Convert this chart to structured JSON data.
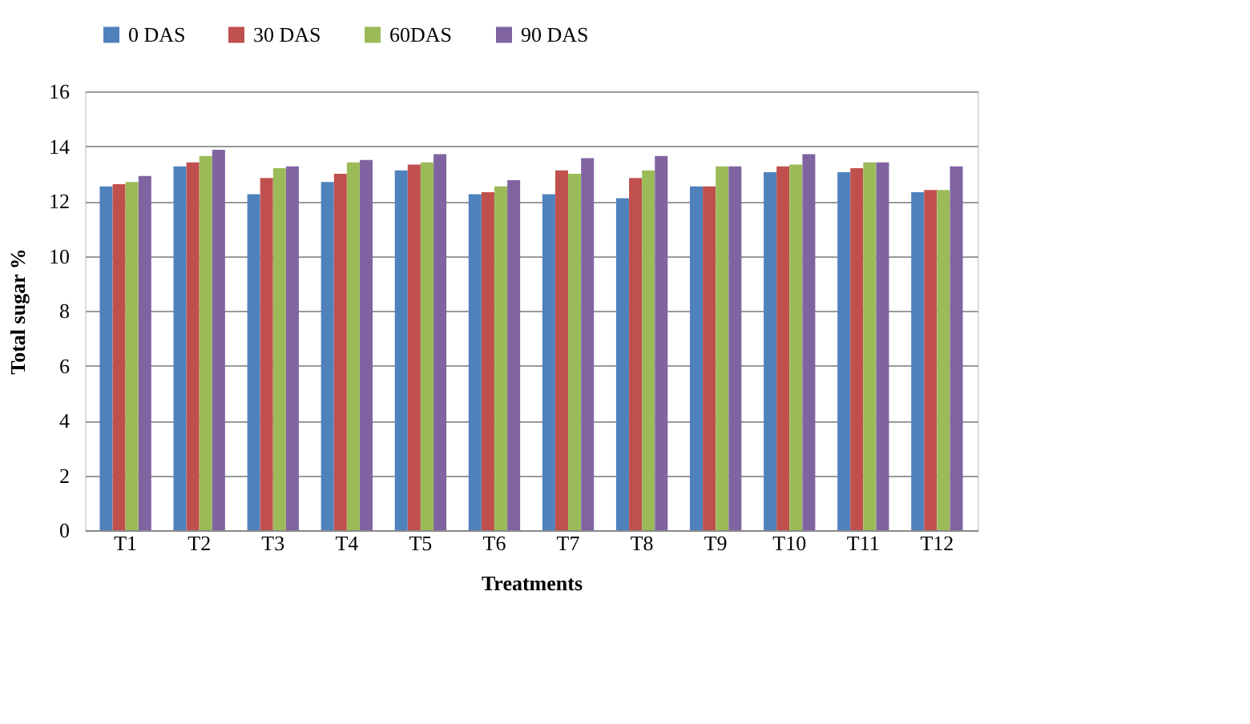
{
  "chart_data": {
    "type": "bar",
    "xlabel": "Treatments",
    "ylabel": "Total sugar %",
    "categories": [
      "T1",
      "T2",
      "T3",
      "T4",
      "T5",
      "T6",
      "T7",
      "T8",
      "T9",
      "T10",
      "T11",
      "T12"
    ],
    "series": [
      {
        "name": "0 DAS",
        "color": "#4f81bd",
        "values": [
          12.53,
          13.26,
          12.25,
          12.69,
          13.12,
          12.25,
          12.25,
          12.1,
          12.53,
          13.05,
          13.05,
          12.32
        ]
      },
      {
        "name": "30 DAS",
        "color": "#c0504d",
        "values": [
          12.61,
          13.41,
          12.84,
          12.99,
          13.33,
          12.32,
          13.12,
          12.84,
          12.53,
          13.26,
          13.2,
          12.4
        ]
      },
      {
        "name": "60DAS",
        "color": "#9bbb59",
        "values": [
          12.69,
          13.64,
          13.2,
          13.41,
          13.41,
          12.53,
          12.99,
          13.12,
          13.26,
          13.33,
          13.41,
          12.4
        ]
      },
      {
        "name": "90 DAS",
        "color": "#8064a2",
        "values": [
          12.91,
          13.87,
          13.26,
          13.5,
          13.71,
          12.76,
          13.56,
          13.64,
          13.26,
          13.71,
          13.41,
          13.26
        ]
      }
    ],
    "ylim": [
      0,
      16
    ],
    "yticks": [
      0,
      2,
      4,
      6,
      8,
      10,
      12,
      14,
      16
    ],
    "grid": "y",
    "legend": "top"
  }
}
